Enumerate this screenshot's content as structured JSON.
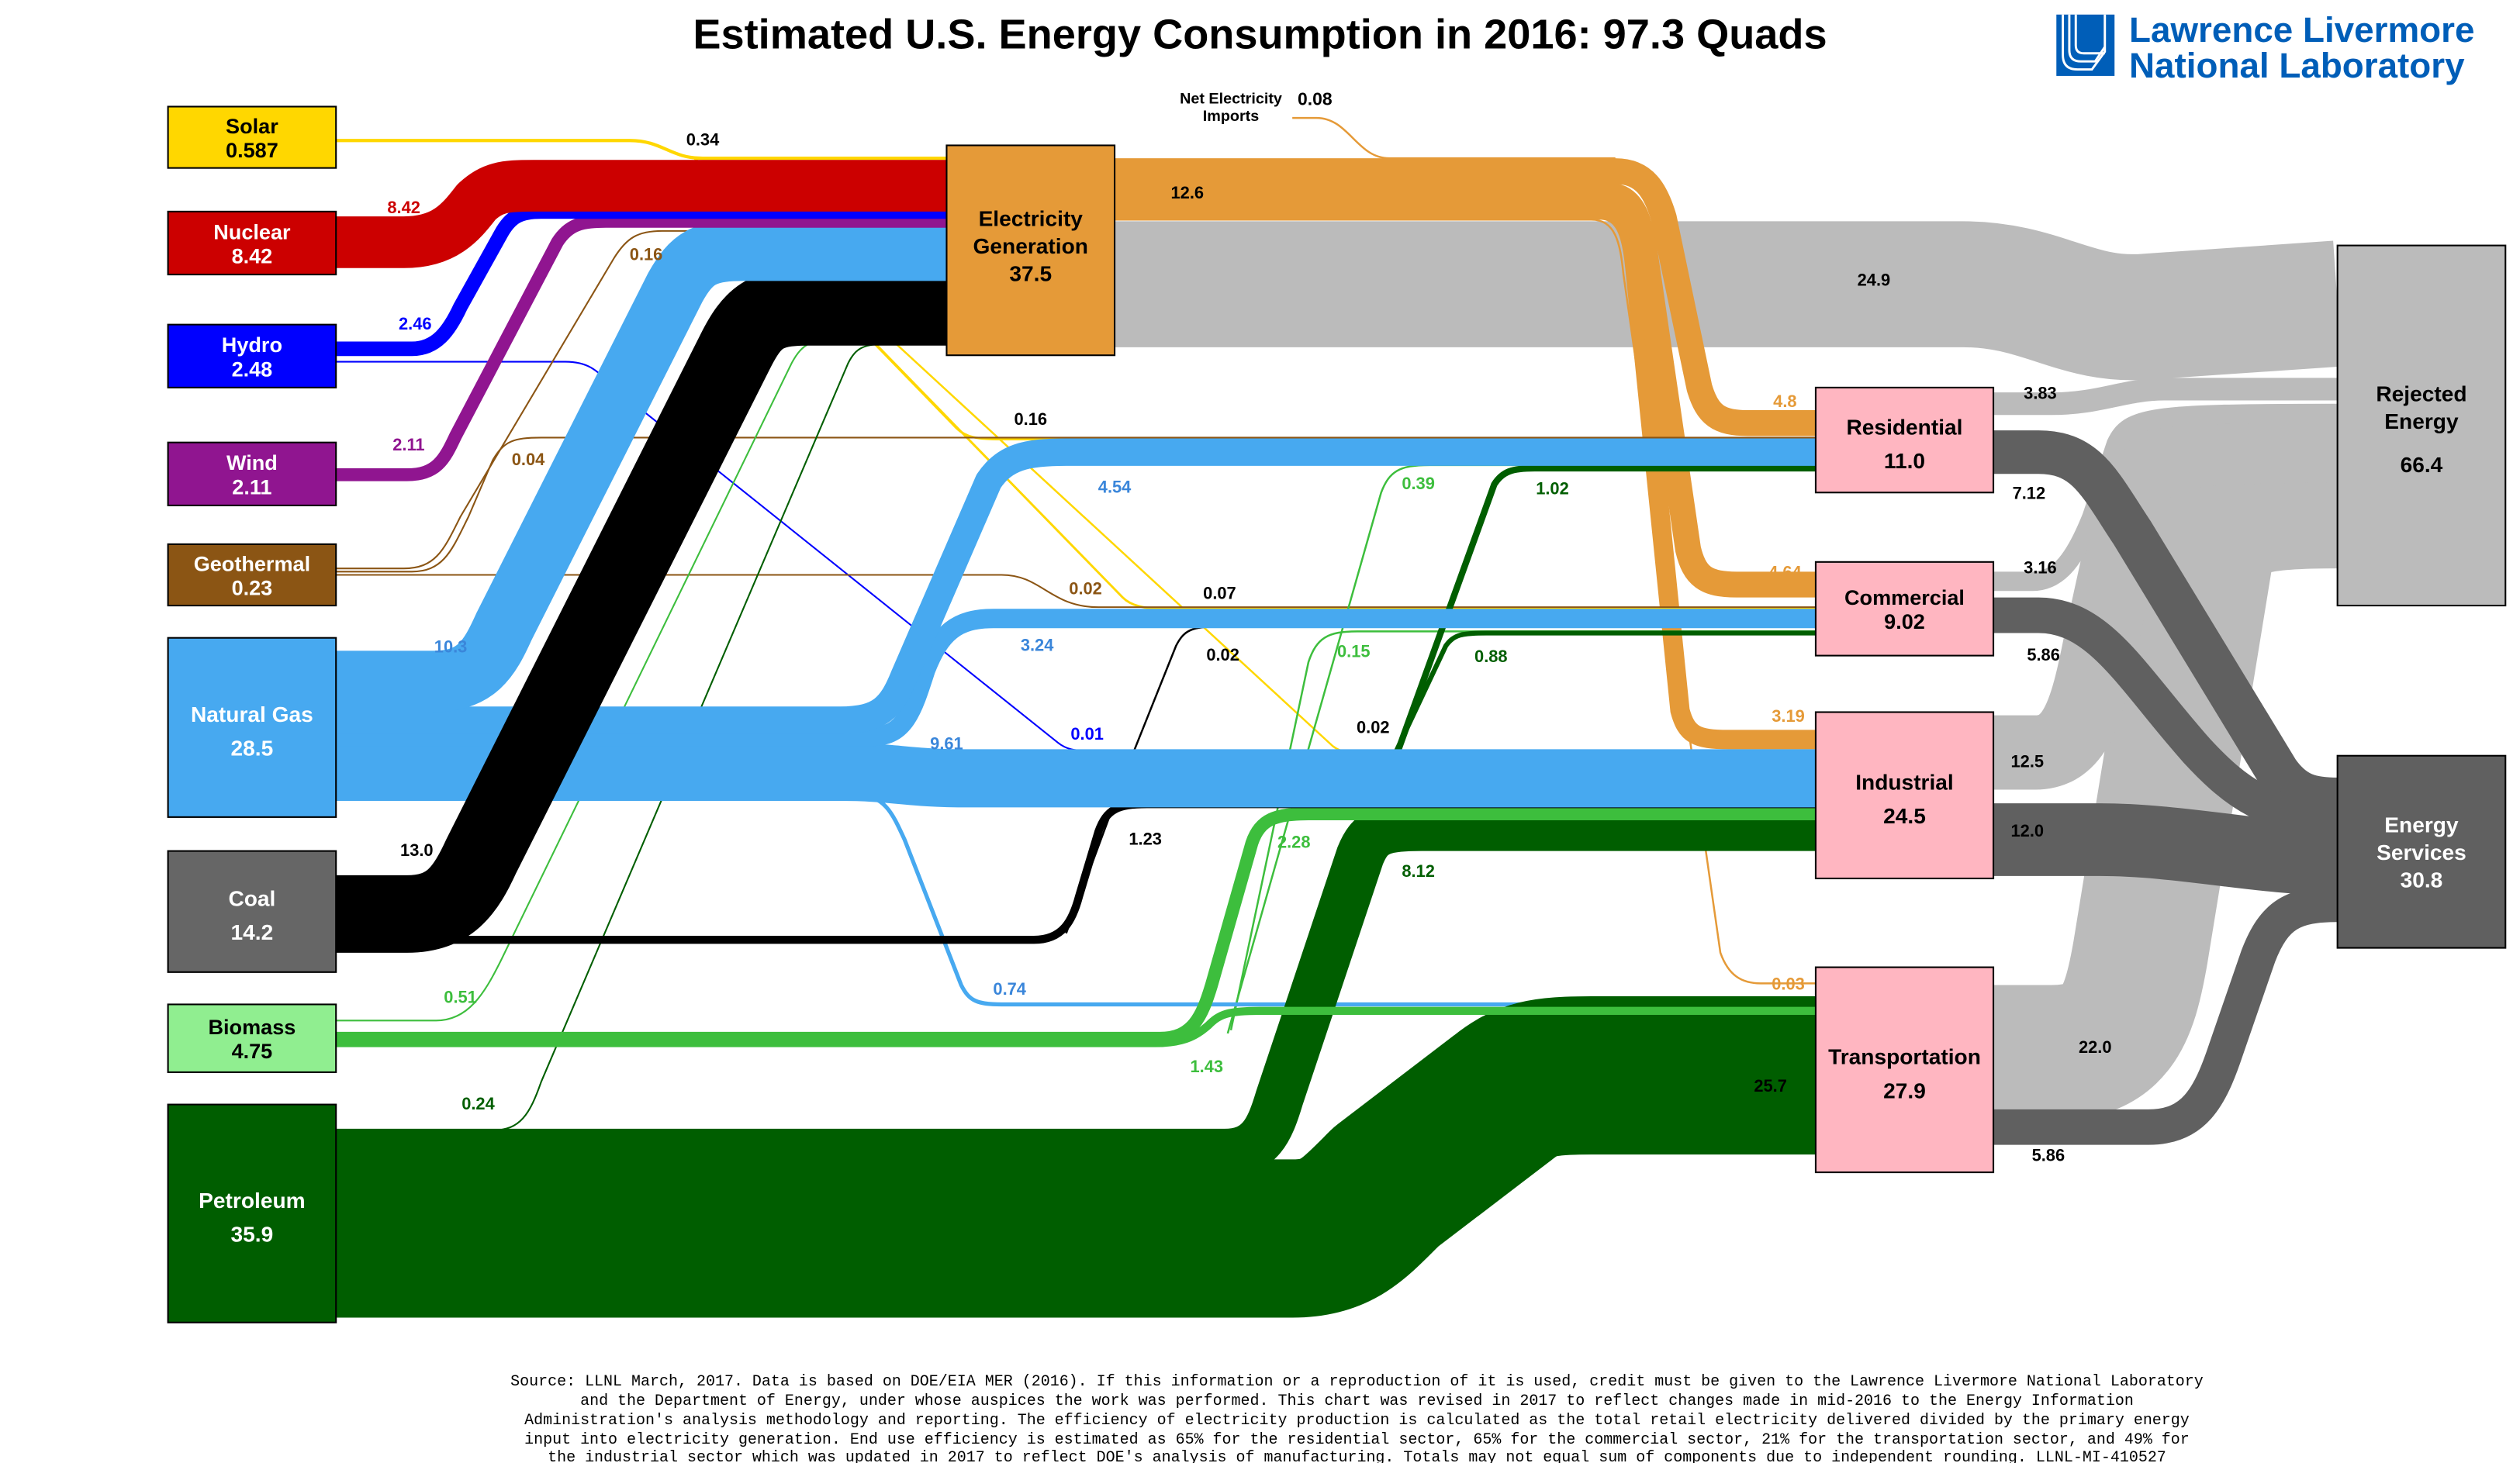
{
  "title": "Estimated U.S. Energy Consumption in 2016: 97.3 Quads",
  "logo": {
    "line1": "Lawrence Livermore",
    "line2": "National Laboratory",
    "color": "#005EB8"
  },
  "net_imports": {
    "label_line1": "Net Electricity",
    "label_line2": "Imports",
    "value": "0.08"
  },
  "colors": {
    "solar": "#FFD700",
    "nuclear": "#CC0000",
    "hydro": "#0000FF",
    "wind": "#901590",
    "geothermal": "#8B5514",
    "natural_gas": "#47A9F0",
    "coal": "#000000",
    "biomass": "#3DBE3D",
    "biomass_box": "#90EE90",
    "petroleum": "#005E00",
    "electricity": "#E59A38",
    "sector": "#FFB6C1",
    "rejected": "#BBBBBB",
    "services": "#606060"
  },
  "nodes": [
    {
      "id": "solar",
      "name": "Solar",
      "value": "0.587"
    },
    {
      "id": "nuclear",
      "name": "Nuclear",
      "value": "8.42"
    },
    {
      "id": "hydro",
      "name": "Hydro",
      "value": "2.48"
    },
    {
      "id": "wind",
      "name": "Wind",
      "value": "2.11"
    },
    {
      "id": "geothermal",
      "name": "Geothermal",
      "value": "0.23"
    },
    {
      "id": "natural_gas",
      "name": "Natural Gas",
      "value": "28.5"
    },
    {
      "id": "coal",
      "name": "Coal",
      "value": "14.2"
    },
    {
      "id": "biomass",
      "name": "Biomass",
      "value": "4.75"
    },
    {
      "id": "petroleum",
      "name": "Petroleum",
      "value": "35.9"
    },
    {
      "id": "electricity",
      "name": "Electricity",
      "name2": "Generation",
      "value": "37.5"
    },
    {
      "id": "residential",
      "name": "Residential",
      "value": "11.0"
    },
    {
      "id": "commercial",
      "name": "Commercial",
      "value": "9.02"
    },
    {
      "id": "industrial",
      "name": "Industrial",
      "value": "24.5"
    },
    {
      "id": "transportation",
      "name": "Transportation",
      "value": "27.9"
    },
    {
      "id": "rejected",
      "name": "Rejected",
      "name2": "Energy",
      "value": "66.4"
    },
    {
      "id": "services",
      "name": "Energy",
      "name2": "Services",
      "value": "30.8"
    }
  ],
  "flows": [
    {
      "source": "electricity",
      "target": "rejected",
      "value": "24.9",
      "color": "rejected",
      "label_color": "#000000"
    },
    {
      "source": "transportation",
      "target": "rejected",
      "value": "22.0",
      "color": "rejected",
      "label_color": "#000000"
    },
    {
      "source": "industrial",
      "target": "rejected",
      "value": "12.5",
      "color": "rejected",
      "label_color": "#000000"
    },
    {
      "source": "commercial",
      "target": "rejected",
      "value": "3.16",
      "color": "rejected",
      "label_color": "#000000"
    },
    {
      "source": "residential",
      "target": "rejected",
      "value": "3.83",
      "color": "rejected",
      "label_color": "#000000"
    },
    {
      "source": "residential",
      "target": "services",
      "value": "7.12",
      "color": "services",
      "label_color": "#000000"
    },
    {
      "source": "commercial",
      "target": "services",
      "value": "5.86",
      "color": "services",
      "label_color": "#000000"
    },
    {
      "source": "industrial",
      "target": "services",
      "value": "12.0",
      "color": "services",
      "label_color": "#000000"
    },
    {
      "source": "transportation",
      "target": "services",
      "value": "5.86",
      "color": "services",
      "label_color": "#000000"
    },
    {
      "source": "imports",
      "target": "electricity",
      "value": "",
      "color": "electricity",
      "label_color": "#000000"
    },
    {
      "source": "electricity",
      "target": "transportation",
      "value": "0.03",
      "color": "electricity",
      "label_color": "#E59A38"
    },
    {
      "source": "electricity",
      "target": "industrial",
      "value": "3.19",
      "color": "electricity",
      "label_color": "#E59A38"
    },
    {
      "source": "electricity",
      "target": "commercial",
      "value": "4.64",
      "color": "electricity",
      "label_color": "#E59A38"
    },
    {
      "source": "electricity",
      "target": "residential",
      "value": "4.8",
      "color": "electricity",
      "label_color": "#E59A38"
    },
    {
      "source": "electricity",
      "target": "sectors",
      "value": "12.6",
      "color": "electricity",
      "label_color": "#000000"
    },
    {
      "source": "solar",
      "target": "electricity",
      "value": "0.34",
      "color": "solar",
      "label_color": "#000000"
    },
    {
      "source": "solar",
      "target": "residential",
      "value": "0.16",
      "color": "solar",
      "label_color": "#000000"
    },
    {
      "source": "solar",
      "target": "commercial",
      "value": "0.07",
      "color": "solar",
      "label_color": "#000000"
    },
    {
      "source": "solar",
      "target": "industrial",
      "value": "0.02",
      "color": "solar",
      "label_color": "#000000"
    },
    {
      "source": "hydro",
      "target": "industrial",
      "value": "0.01",
      "color": "hydro",
      "label_color": "#0000FF"
    },
    {
      "source": "geothermal",
      "target": "electricity",
      "value": "0.16",
      "color": "geothermal",
      "label_color": "#8B5514"
    },
    {
      "source": "geothermal",
      "target": "residential",
      "value": "0.04",
      "color": "geothermal",
      "label_color": "#8B5514"
    },
    {
      "source": "geothermal",
      "target": "commercial",
      "value": "0.02",
      "color": "geothermal",
      "label_color": "#8B5514"
    },
    {
      "source": "coal",
      "target": "commercial",
      "value": "0.02",
      "color": "coal",
      "label_color": "#000000"
    },
    {
      "source": "biomass",
      "target": "electricity",
      "value": "0.51",
      "color": "biomass",
      "label_color": "#3DBE3D"
    },
    {
      "source": "biomass",
      "target": "residential",
      "value": "0.39",
      "color": "biomass",
      "label_color": "#3DBE3D"
    },
    {
      "source": "biomass",
      "target": "commercial",
      "value": "0.15",
      "color": "biomass",
      "label_color": "#3DBE3D"
    },
    {
      "source": "petroleum",
      "target": "electricity",
      "value": "0.24",
      "color": "petroleum",
      "label_color": "#005E00"
    },
    {
      "source": "petroleum",
      "target": "residential",
      "value": "1.02",
      "color": "petroleum",
      "label_color": "#005E00"
    },
    {
      "source": "petroleum",
      "target": "commercial",
      "value": "0.88",
      "color": "petroleum",
      "label_color": "#005E00"
    },
    {
      "source": "natural_gas",
      "target": "transportation",
      "value": "0.74",
      "color": "natural_gas",
      "label_color": "#3A86DA"
    },
    {
      "source": "petroleum",
      "target": "transportation",
      "value": "25.7",
      "color": "petroleum",
      "label_color": "#000000"
    },
    {
      "source": "petroleum",
      "target": "industrial",
      "value": "8.12",
      "color": "petroleum",
      "label_color": "#005E00"
    },
    {
      "source": "biomass",
      "target": "transportation",
      "value": "1.43",
      "color": "biomass",
      "label_color": "#3DBE3D"
    },
    {
      "source": "biomass",
      "target": "industrial",
      "value": "2.28",
      "color": "biomass",
      "label_color": "#3DBE3D"
    },
    {
      "source": "coal",
      "target": "industrial",
      "value": "1.23",
      "color": "coal",
      "label_color": "#000000"
    },
    {
      "source": "natural_gas",
      "target": "industrial",
      "value": "9.61",
      "color": "natural_gas",
      "label_color": "#3A86DA"
    },
    {
      "source": "natural_gas",
      "target": "commercial",
      "value": "3.24",
      "color": "natural_gas",
      "label_color": "#3A86DA"
    },
    {
      "source": "natural_gas",
      "target": "residential",
      "value": "4.54",
      "color": "natural_gas",
      "label_color": "#3A86DA"
    },
    {
      "source": "coal",
      "target": "electricity",
      "value": "13.0",
      "color": "coal",
      "label_color": "#000000"
    },
    {
      "source": "natural_gas",
      "target": "electricity",
      "value": "10.3",
      "color": "natural_gas",
      "label_color": "#3A86DA"
    },
    {
      "source": "wind",
      "target": "electricity",
      "value": "2.11",
      "color": "wind",
      "label_color": "#901590"
    },
    {
      "source": "hydro",
      "target": "electricity",
      "value": "2.46",
      "color": "hydro",
      "label_color": "#0000FF"
    },
    {
      "source": "nuclear",
      "target": "electricity",
      "value": "8.42",
      "color": "nuclear",
      "label_color": "#CC0000"
    }
  ],
  "footer": [
    "Source: LLNL March, 2017. Data is based on DOE/EIA MER (2016). If this information or a reproduction of it is used, credit must be given to the Lawrence Livermore National Laboratory",
    "and the Department of Energy, under whose auspices the work was performed. This chart was revised in 2017 to reflect changes made in mid-2016 to the Energy Information",
    "Administration's analysis methodology and reporting.  The efficiency of electricity production is calculated as the total retail electricity delivered divided by the primary energy",
    "input into electricity generation.  End use efficiency is estimated as 65% for the residential sector, 65% for the commercial sector, 21% for the transportation sector, and 49% for",
    "the industrial sector which was updated in 2017 to reflect DOE's analysis of manufacturing.  Totals may not equal sum of components due to independent rounding. LLNL-MI-410527"
  ]
}
